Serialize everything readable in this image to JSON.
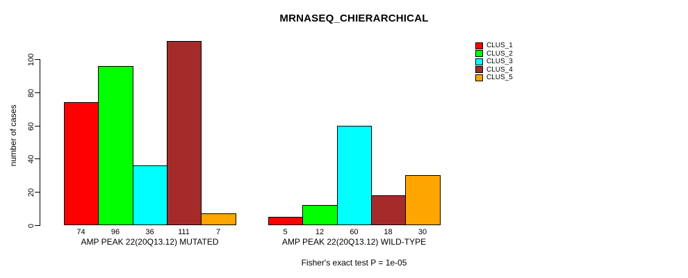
{
  "chart_data": {
    "type": "bar",
    "title": "MRNASEQ_CHIERARCHICAL",
    "xlabel": "",
    "ylabel": "number of cases",
    "ylim": [
      0,
      115
    ],
    "yticks": [
      0,
      20,
      40,
      60,
      80,
      100
    ],
    "grid": false,
    "legend_position": "top-right",
    "categories": [
      "AMP PEAK 22(20Q13.12) MUTATED",
      "AMP PEAK 22(20Q13.12) WILD-TYPE"
    ],
    "series": [
      {
        "name": "CLUS_1",
        "color": "#FF0000",
        "values": [
          74,
          5
        ]
      },
      {
        "name": "CLUS_2",
        "color": "#00FF00",
        "values": [
          96,
          12
        ]
      },
      {
        "name": "CLUS_3",
        "color": "#00FFFF",
        "values": [
          36,
          60
        ]
      },
      {
        "name": "CLUS_4",
        "color": "#A52A2A",
        "values": [
          111,
          18
        ]
      },
      {
        "name": "CLUS_5",
        "color": "#FFA500",
        "values": [
          7,
          30
        ]
      }
    ],
    "bar_value_labels": [
      [
        74,
        96,
        36,
        111,
        7
      ],
      [
        5,
        12,
        60,
        18,
        30
      ]
    ],
    "annotation": "Fisher's exact test P = 1e-05"
  },
  "colors": {
    "background": "#FFFFFF",
    "axis": "#000000",
    "text": "#000000"
  }
}
